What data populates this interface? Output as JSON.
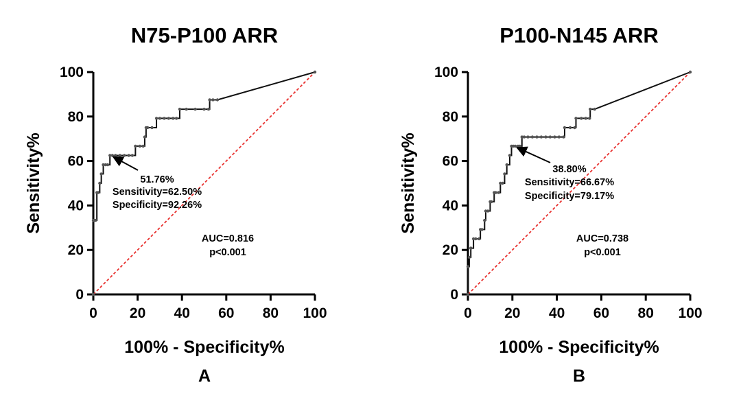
{
  "chart_data": [
    {
      "type": "line",
      "panel_letter": "A",
      "title": "N75-P100 ARR",
      "xlabel": "100% - Specificity%",
      "ylabel": "Sensitivity%",
      "xlim": [
        0,
        100
      ],
      "ylim": [
        0,
        100
      ],
      "xticks": [
        0,
        20,
        40,
        60,
        80,
        100
      ],
      "yticks": [
        0,
        20,
        40,
        60,
        80,
        100
      ],
      "grid": false,
      "series": [
        {
          "x": [
            0,
            0,
            0.5,
            1,
            1.6,
            2.2,
            2.9,
            3.6,
            4.5,
            5.5,
            6.5,
            7.5,
            8.6,
            10,
            12,
            14,
            16,
            17.6,
            19,
            21,
            22.5,
            23.2,
            23.8,
            24.5,
            26.5,
            28.5,
            30,
            32,
            34,
            36,
            37.5,
            39,
            42,
            46,
            50,
            52,
            52.5,
            54,
            56,
            100
          ],
          "y": [
            0,
            33.3,
            33.3,
            33.3,
            45.8,
            45.8,
            50,
            54.2,
            58.3,
            58.3,
            58.3,
            62.5,
            62.5,
            62.5,
            62.5,
            62.5,
            62.5,
            62.5,
            66.7,
            66.7,
            66.7,
            70.8,
            75,
            75,
            75,
            79.2,
            79.2,
            79.2,
            79.2,
            79.2,
            79.2,
            83.3,
            83.3,
            83.3,
            83.3,
            83.3,
            87.5,
            87.5,
            87.5,
            100
          ]
        },
        {
          "name": "reference",
          "x": [
            0,
            100
          ],
          "y": [
            0,
            100
          ]
        }
      ],
      "cut_point": {
        "x": 7.74,
        "y": 62.5
      },
      "annotations": {
        "cutoff": "51.76%",
        "sensitivity": "Sensitivity=62.50%",
        "specificity": "Specificity=92.26%",
        "auc": "AUC=0.816",
        "p": "p<0.001"
      }
    },
    {
      "type": "line",
      "panel_letter": "B",
      "title": "P100-N145 ARR",
      "xlabel": "100% - Specificity%",
      "ylabel": "Sensitivity%",
      "xlim": [
        0,
        100
      ],
      "ylim": [
        0,
        100
      ],
      "xticks": [
        0,
        20,
        40,
        60,
        80,
        100
      ],
      "yticks": [
        0,
        20,
        40,
        60,
        80,
        100
      ],
      "grid": false,
      "series": [
        {
          "x": [
            0,
            0,
            0.6,
            1.3,
            1.3,
            2.5,
            3.5,
            5,
            5.6,
            6.3,
            7.5,
            8,
            9,
            10,
            10.6,
            11.8,
            12.5,
            13.8,
            14.6,
            15.6,
            16.5,
            17.5,
            18.8,
            19.6,
            20.4,
            21.3,
            22.5,
            23.3,
            24.3,
            25.3,
            27,
            29,
            31,
            33,
            35,
            37,
            39,
            41,
            43,
            43.5,
            46,
            48,
            48.6,
            51,
            53,
            54.7,
            55,
            57,
            100
          ],
          "y": [
            0,
            12.5,
            16.7,
            20.8,
            20.8,
            25,
            25,
            25,
            29.2,
            29.2,
            33.3,
            37.5,
            37.5,
            41.7,
            41.7,
            45.8,
            45.8,
            45.8,
            50,
            50,
            54.2,
            58.3,
            62.5,
            66.7,
            66.7,
            66.7,
            66.7,
            66.7,
            70.8,
            70.8,
            70.8,
            70.8,
            70.8,
            70.8,
            70.8,
            70.8,
            70.8,
            70.8,
            70.8,
            75,
            75,
            75,
            79.2,
            79.2,
            79.2,
            79.2,
            83.3,
            83.3,
            100
          ]
        },
        {
          "name": "reference",
          "x": [
            0,
            100
          ],
          "y": [
            0,
            100
          ]
        }
      ],
      "cut_point": {
        "x": 20.83,
        "y": 66.67
      },
      "annotations": {
        "cutoff": "38.80%",
        "sensitivity": "Sensitivity=66.67%",
        "specificity": "Specificity=79.17%",
        "auc": "AUC=0.738",
        "p": "p<0.001"
      }
    }
  ]
}
